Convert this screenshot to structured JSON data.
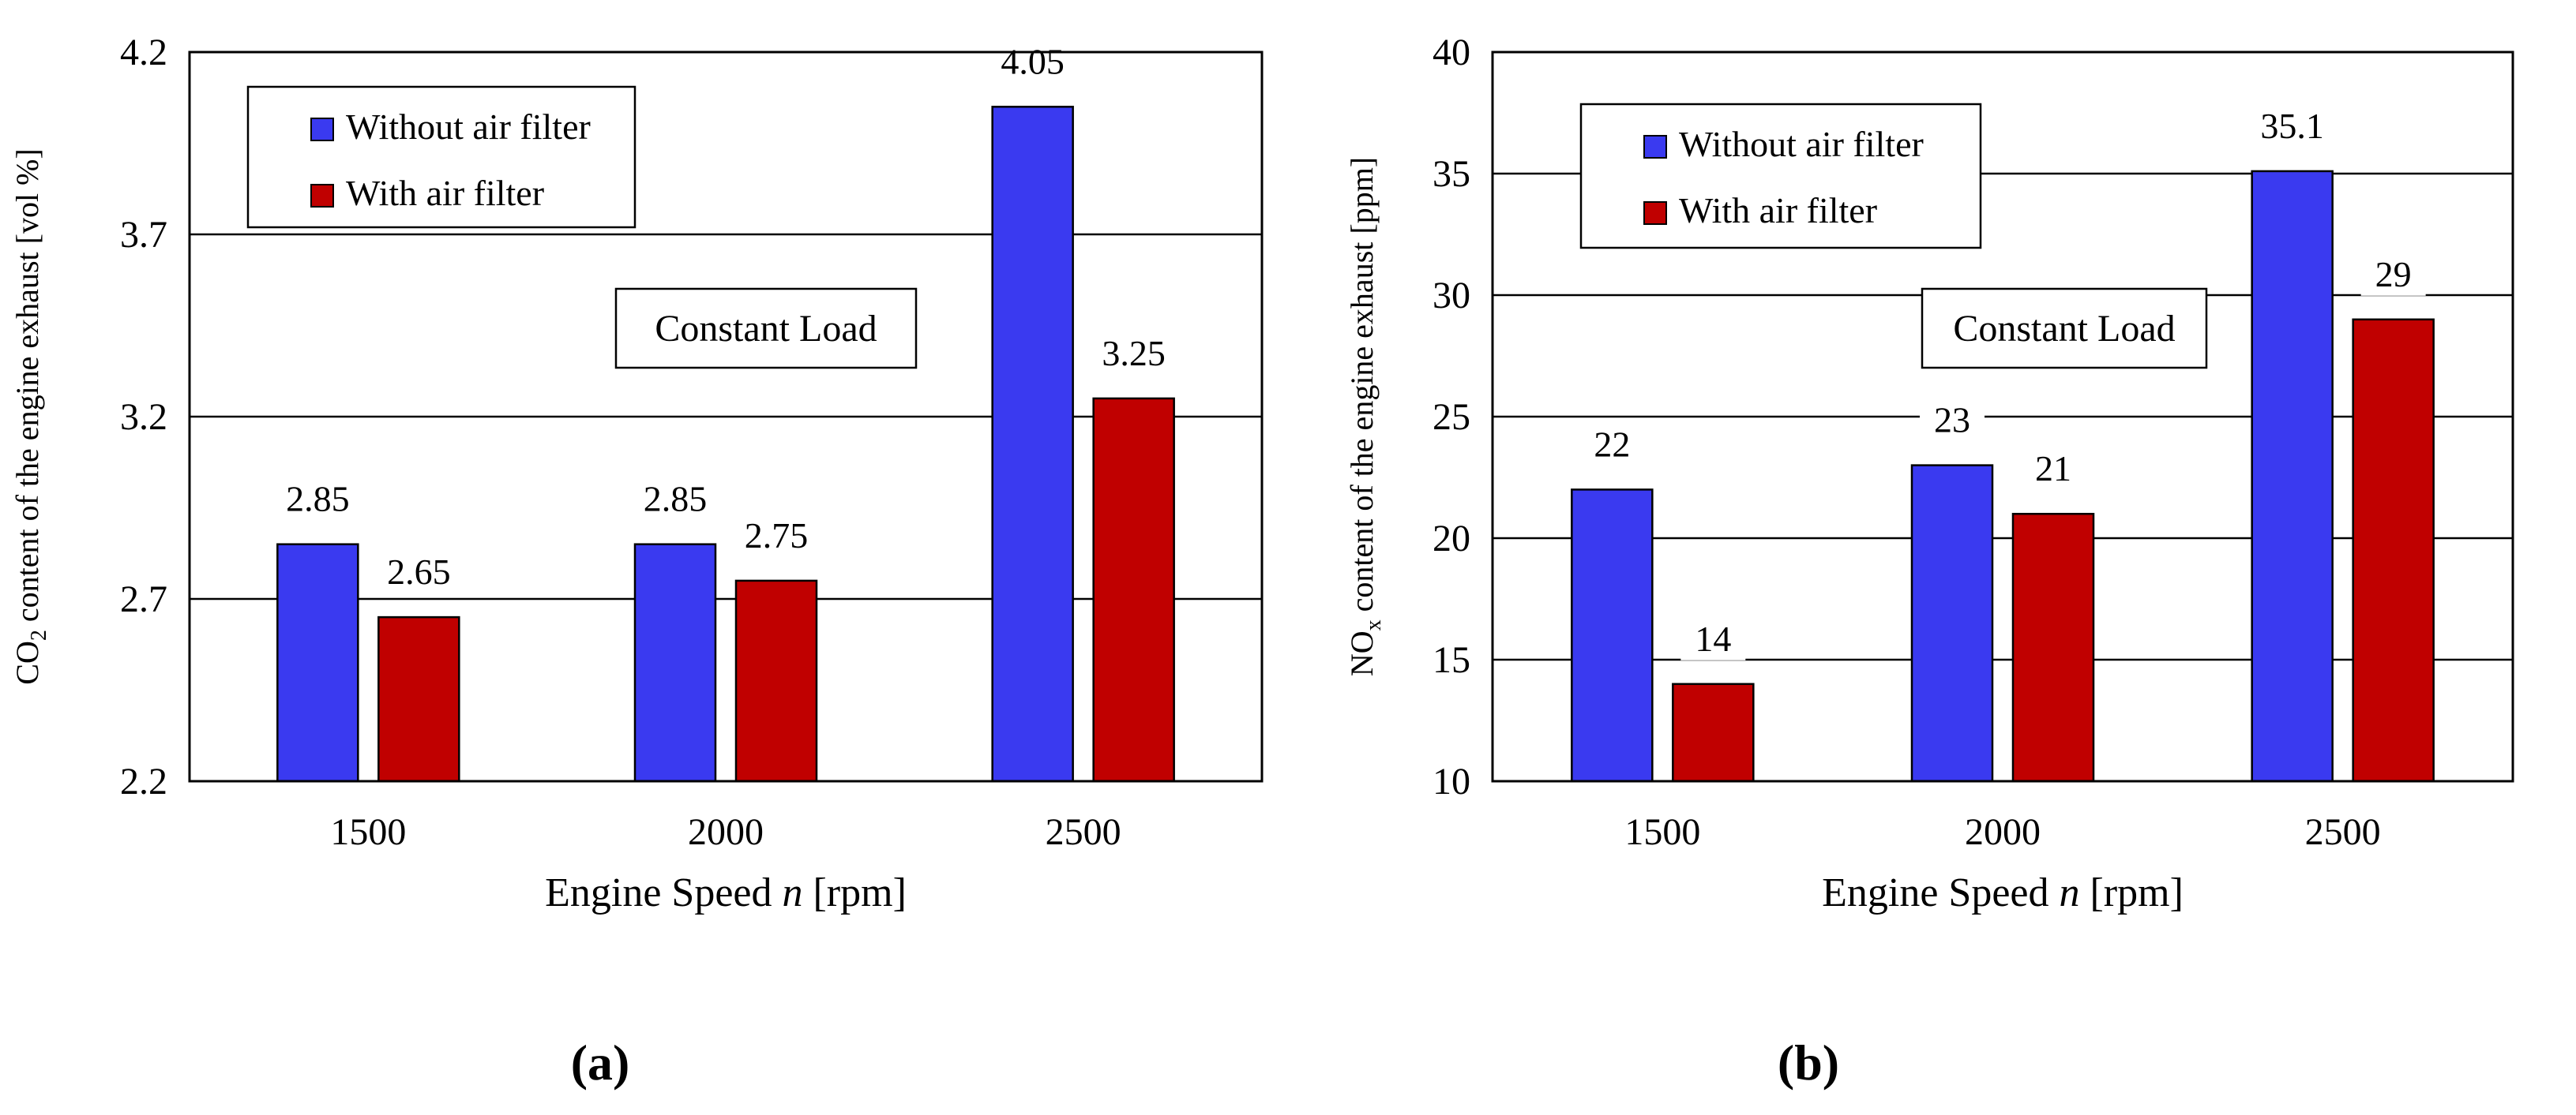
{
  "chart_data": [
    {
      "type": "bar",
      "panel_label": "(a)",
      "categories": [
        "1500",
        "2000",
        "2500"
      ],
      "series": [
        {
          "name": "Without air filter",
          "values": [
            2.85,
            2.85,
            4.05
          ],
          "labels": [
            "2.85",
            "2.85",
            "4.05"
          ],
          "color": "#3a3af0"
        },
        {
          "name": "With air filter",
          "values": [
            2.65,
            2.75,
            3.25
          ],
          "labels": [
            "2.65",
            "2.75",
            "3.25"
          ],
          "color": "#c00000"
        }
      ],
      "xlabel_main": "Engine Speed ",
      "xlabel_var": "n",
      "xlabel_unit": " [rpm]",
      "ylabel_pre": "CO",
      "ylabel_sub": "2",
      "ylabel_post": " content of the engine exhaust [vol %]",
      "ylim": [
        2.2,
        4.2
      ],
      "yticks": [
        2.2,
        2.7,
        3.2,
        3.7,
        4.2
      ],
      "ytick_labels": [
        "2.2",
        "2.7",
        "3.2",
        "3.7",
        "4.2"
      ],
      "annotation": "Constant Load",
      "legend_position": "top-left",
      "grid": true
    },
    {
      "type": "bar",
      "panel_label": "(b)",
      "categories": [
        "1500",
        "2000",
        "2500"
      ],
      "series": [
        {
          "name": "Without air filter",
          "values": [
            22,
            23,
            35.1
          ],
          "labels": [
            "22",
            "23",
            "35.1"
          ],
          "color": "#3a3af0"
        },
        {
          "name": "With air filter",
          "values": [
            14,
            21,
            29
          ],
          "labels": [
            "14",
            "21",
            "29"
          ],
          "color": "#c00000"
        }
      ],
      "xlabel_main": "Engine Speed ",
      "xlabel_var": "n",
      "xlabel_unit": " [rpm]",
      "ylabel_pre": "NO",
      "ylabel_sub": "x",
      "ylabel_post": " content of the engine exhaust [ppm]",
      "ylim": [
        10,
        40
      ],
      "yticks": [
        10,
        15,
        20,
        25,
        30,
        35,
        40
      ],
      "ytick_labels": [
        "10",
        "15",
        "20",
        "25",
        "30",
        "35",
        "40"
      ],
      "annotation": "Constant Load",
      "legend_position": "top-left",
      "grid": true
    }
  ]
}
